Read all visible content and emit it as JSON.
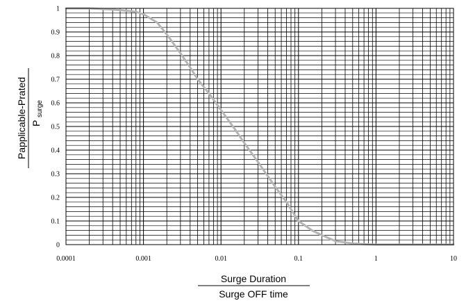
{
  "chart_data": {
    "type": "line",
    "x_scale": "log",
    "xlim": [
      0.0001,
      10
    ],
    "ylim": [
      0,
      1
    ],
    "grid": true,
    "x_tick_labels": [
      "0.0001",
      "0.001",
      "0.01",
      "0.1",
      "1",
      "10"
    ],
    "y_tick_labels": [
      "0",
      "0.1",
      "0.2",
      "0.3",
      "0.4",
      "0.5",
      "0.6",
      "0.7",
      "0.8",
      "0.9",
      "1"
    ],
    "ylabel": {
      "numerator_main": "Papplicable-Prated",
      "denominator_main": "P",
      "denominator_sub": "surge"
    },
    "xlabel": {
      "numerator": "Surge Duration",
      "denominator": "Surge OFF time"
    },
    "series": [
      {
        "x": [
          0.0001,
          0.0002,
          0.0004,
          0.0006,
          0.0008,
          0.001,
          0.0015,
          0.002,
          0.003,
          0.004,
          0.005,
          0.007,
          0.01,
          0.015,
          0.02,
          0.03,
          0.05,
          0.07,
          0.1,
          0.15,
          0.2,
          0.3,
          0.5,
          0.7,
          1,
          2,
          5,
          10
        ],
        "y": [
          1.0,
          1.0,
          0.995,
          0.99,
          0.985,
          0.975,
          0.94,
          0.89,
          0.81,
          0.75,
          0.7,
          0.64,
          0.57,
          0.49,
          0.43,
          0.35,
          0.245,
          0.18,
          0.1,
          0.06,
          0.04,
          0.015,
          0.005,
          0.002,
          0.0,
          0.0,
          0.0,
          0.0
        ],
        "color": "#b5b5b5"
      }
    ]
  }
}
